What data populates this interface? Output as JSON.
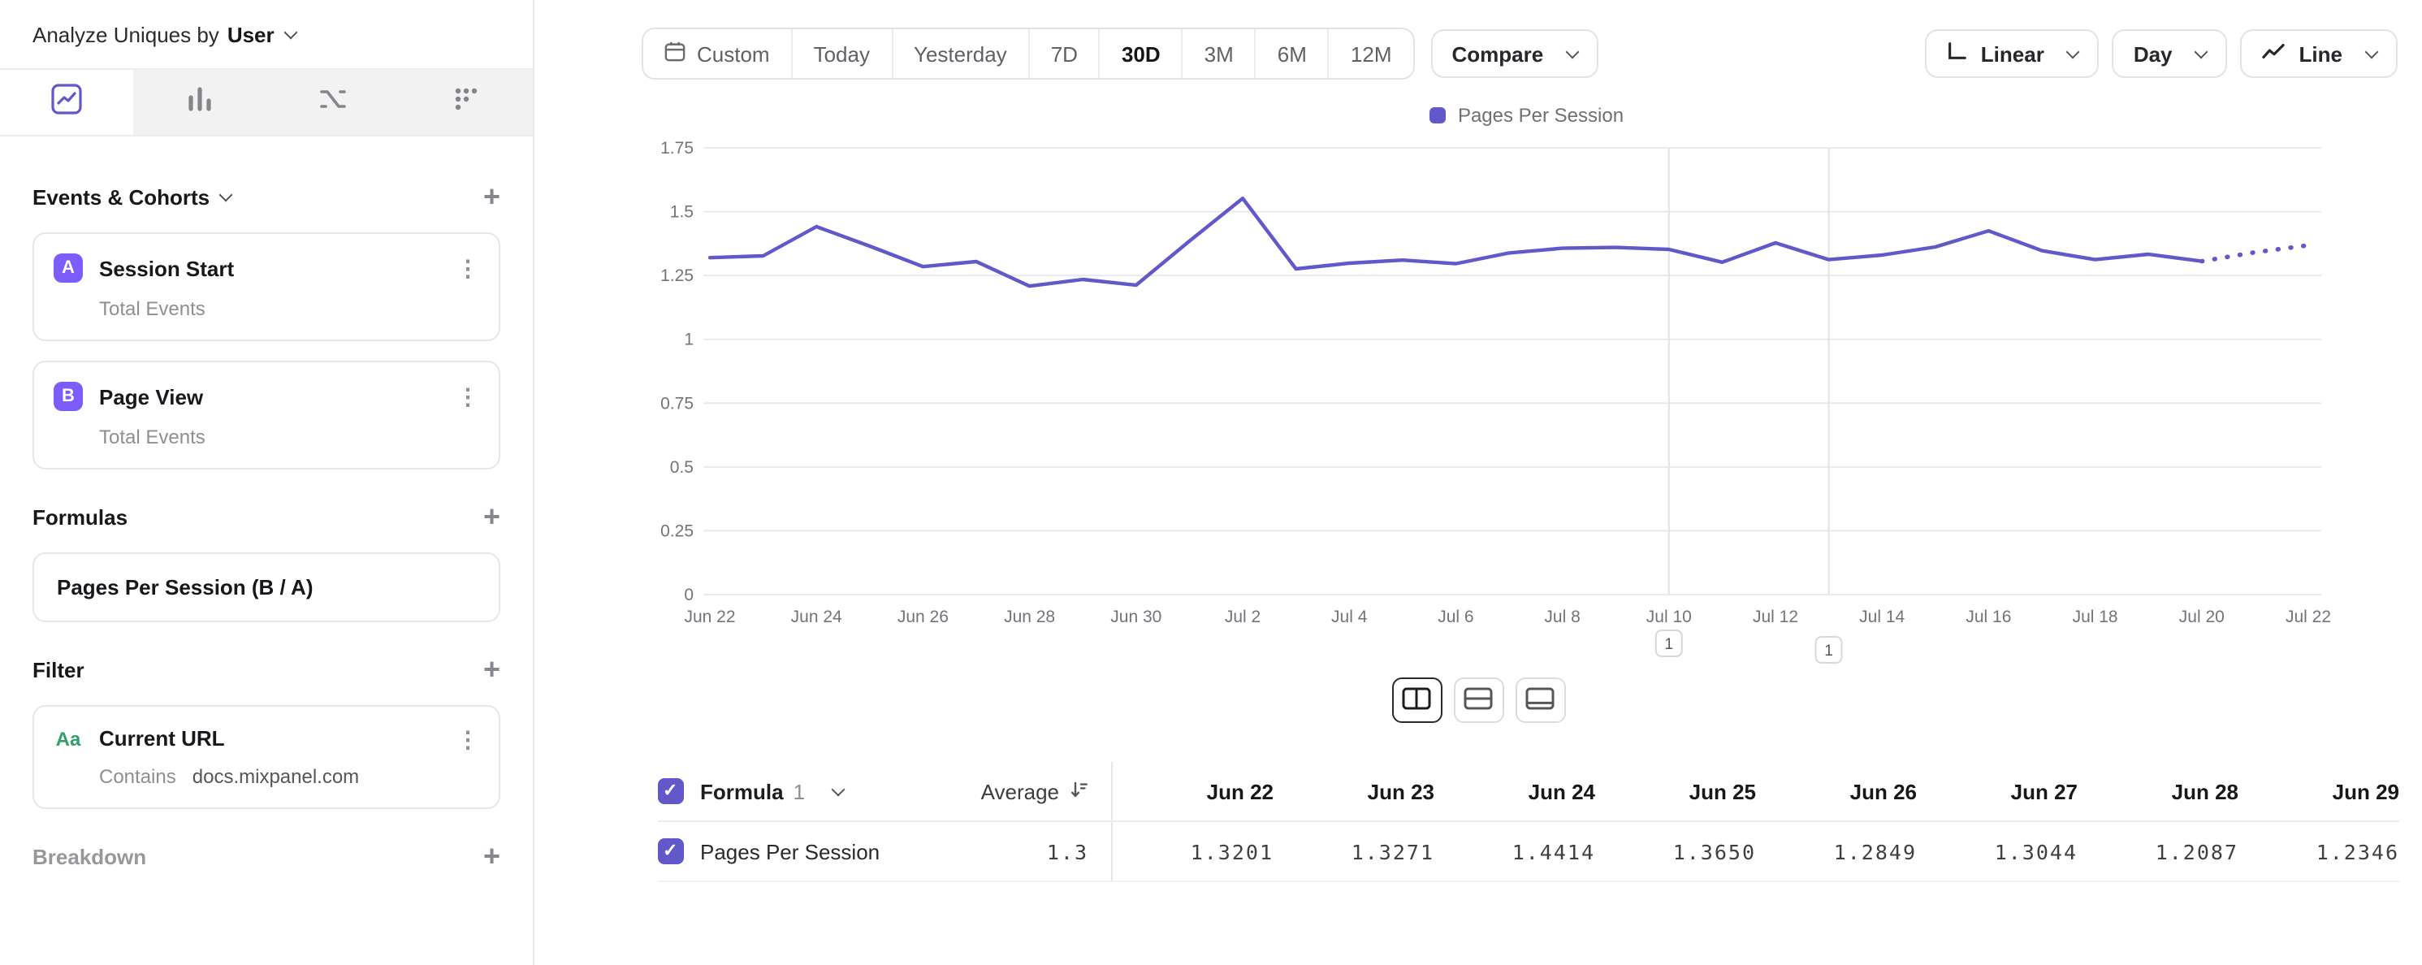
{
  "colors": {
    "accent": "#6158c9",
    "line": "#6158c9",
    "badge": "#7c5cfa",
    "green": "#2f9e69"
  },
  "sidebar": {
    "analyze": {
      "prefix": "Analyze Uniques by",
      "value": "User"
    },
    "tabs": [
      {
        "name": "insights",
        "selected": true
      },
      {
        "name": "funnels",
        "selected": false
      },
      {
        "name": "flows",
        "selected": false
      },
      {
        "name": "retention",
        "selected": false
      }
    ],
    "events_section": "Events & Cohorts",
    "events": [
      {
        "badge": "A",
        "name": "Session Start",
        "sub": "Total Events"
      },
      {
        "badge": "B",
        "name": "Page View",
        "sub": "Total Events"
      }
    ],
    "formulas_section": "Formulas",
    "formula": "Pages Per Session (B / A)",
    "filter_section": "Filter",
    "filter": {
      "type": "Aa",
      "name": "Current URL",
      "operator": "Contains",
      "value": "docs.mixpanel.com"
    },
    "breakdown_section": "Breakdown"
  },
  "toolbar": {
    "ranges": [
      "Custom",
      "Today",
      "Yesterday",
      "7D",
      "30D",
      "3M",
      "6M",
      "12M"
    ],
    "selected_range": "30D",
    "compare_label": "Compare",
    "scale_label": "Linear",
    "interval_label": "Day",
    "chart_type_label": "Line",
    "icons": {
      "custom": "calendar-icon",
      "scale": "axis-icon",
      "chart_type": "line-chart-icon"
    }
  },
  "chart_data": {
    "type": "line",
    "legend_position": "top-center",
    "ylim": [
      0,
      1.75
    ],
    "yticks": [
      0,
      0.25,
      0.5,
      0.75,
      1,
      1.25,
      1.5,
      1.75
    ],
    "x": [
      "Jun 22",
      "Jun 23",
      "Jun 24",
      "Jun 25",
      "Jun 26",
      "Jun 27",
      "Jun 28",
      "Jun 29",
      "Jun 30",
      "Jul 1",
      "Jul 2",
      "Jul 3",
      "Jul 4",
      "Jul 5",
      "Jul 6",
      "Jul 7",
      "Jul 8",
      "Jul 9",
      "Jul 10",
      "Jul 11",
      "Jul 12",
      "Jul 13",
      "Jul 14",
      "Jul 15",
      "Jul 16",
      "Jul 17",
      "Jul 18",
      "Jul 19",
      "Jul 20",
      "Jul 21",
      "Jul 22"
    ],
    "x_tick_step": 2,
    "series": [
      {
        "name": "Pages Per Session",
        "values": [
          1.3201,
          1.3271,
          1.4414,
          1.365,
          1.2849,
          1.3044,
          1.2087,
          1.2346,
          1.212,
          1.385,
          1.552,
          1.276,
          1.298,
          1.31,
          1.296,
          1.338,
          1.357,
          1.36,
          1.352,
          1.302,
          1.378,
          1.312,
          1.33,
          1.362,
          1.425,
          1.347,
          1.312,
          1.333,
          1.306,
          1.341,
          1.368
        ]
      }
    ],
    "dotted_from_index": 28,
    "annotations": [
      {
        "label": "1",
        "date": "Jul 10"
      },
      {
        "label": "1",
        "date": "Jul 13"
      }
    ]
  },
  "layout_toggles": {
    "options": [
      "side-by-side",
      "stacked",
      "chart-focus"
    ],
    "selected": 0
  },
  "table": {
    "group_label": "Formula",
    "group_number": "1",
    "average_label": "Average",
    "columns": [
      "Jun 22",
      "Jun 23",
      "Jun 24",
      "Jun 25",
      "Jun 26",
      "Jun 27",
      "Jun 28",
      "Jun 29"
    ],
    "rows": [
      {
        "name": "Pages Per Session",
        "average": "1.3",
        "values": [
          "1.3201",
          "1.3271",
          "1.4414",
          "1.3650",
          "1.2849",
          "1.3044",
          "1.2087",
          "1.2346"
        ]
      }
    ]
  }
}
